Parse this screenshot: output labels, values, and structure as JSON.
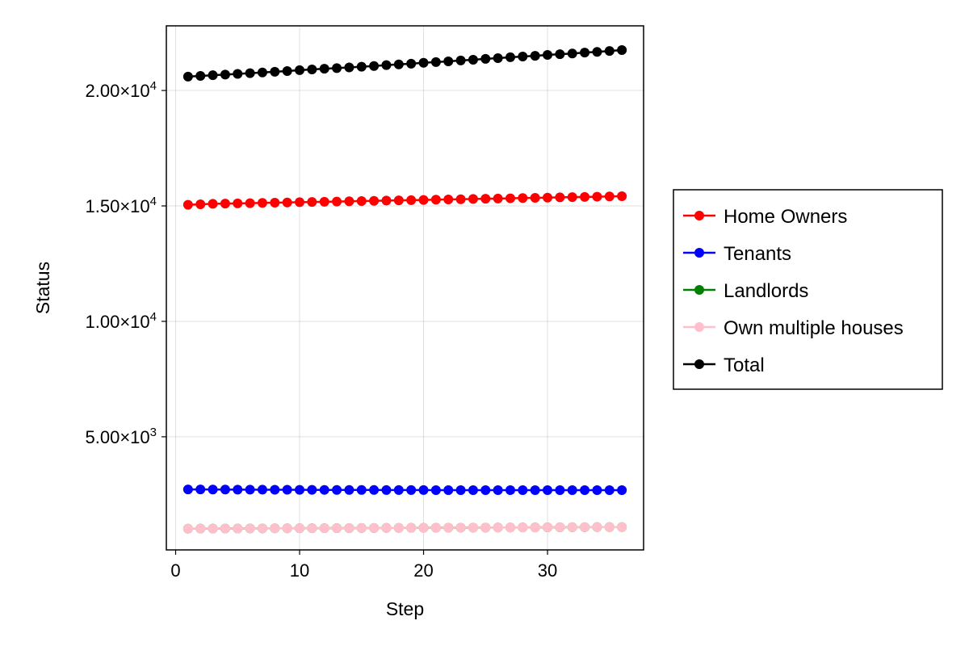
{
  "chart_data": {
    "type": "line",
    "xlabel": "Step",
    "ylabel": "Status",
    "xlim": [
      -0.75,
      37.75
    ],
    "ylim": [
      100,
      22800
    ],
    "x_ticks": [
      0,
      10,
      20,
      30
    ],
    "y_ticks": [
      {
        "value": 5000,
        "mantissa": "5.00×10",
        "exp": "3"
      },
      {
        "value": 10000,
        "mantissa": "1.00×10",
        "exp": "4"
      },
      {
        "value": 15000,
        "mantissa": "1.50×10",
        "exp": "4"
      },
      {
        "value": 20000,
        "mantissa": "2.00×10",
        "exp": "4"
      }
    ],
    "grid": true,
    "legend_position": "right",
    "x": [
      1,
      2,
      3,
      4,
      5,
      6,
      7,
      8,
      9,
      10,
      11,
      12,
      13,
      14,
      15,
      16,
      17,
      18,
      19,
      20,
      21,
      22,
      23,
      24,
      25,
      26,
      27,
      28,
      29,
      30,
      31,
      32,
      33,
      34,
      35,
      36
    ],
    "series": [
      {
        "name": "Landlords",
        "color": "#008000",
        "values": [
          1020,
          1022,
          1024,
          1026,
          1028,
          1030,
          1032,
          1034,
          1036,
          1038,
          1040,
          1042,
          1044,
          1046,
          1048,
          1050,
          1052,
          1054,
          1056,
          1058,
          1060,
          1062,
          1064,
          1066,
          1068,
          1070,
          1072,
          1074,
          1076,
          1078,
          1080,
          1082,
          1084,
          1086,
          1088,
          1090
        ]
      },
      {
        "name": "Own multiple houses",
        "color": "#ffc0cb",
        "values": [
          1020,
          1022,
          1024,
          1026,
          1028,
          1030,
          1032,
          1034,
          1036,
          1038,
          1040,
          1042,
          1044,
          1046,
          1048,
          1050,
          1052,
          1054,
          1056,
          1058,
          1060,
          1062,
          1064,
          1066,
          1068,
          1070,
          1072,
          1074,
          1076,
          1078,
          1080,
          1082,
          1084,
          1086,
          1088,
          1090
        ]
      },
      {
        "name": "Tenants",
        "color": "#0000ff",
        "values": [
          2720,
          2718,
          2716,
          2714,
          2712,
          2710,
          2708,
          2706,
          2704,
          2702,
          2700,
          2699,
          2698,
          2697,
          2696,
          2695,
          2694,
          2693,
          2692,
          2691,
          2690,
          2690,
          2690,
          2690,
          2690,
          2690,
          2690,
          2690,
          2690,
          2690,
          2690,
          2690,
          2690,
          2690,
          2690,
          2690
        ]
      },
      {
        "name": "Home Owners",
        "color": "#ff0000",
        "values": [
          15050,
          15070,
          15090,
          15100,
          15110,
          15120,
          15130,
          15140,
          15150,
          15160,
          15170,
          15180,
          15190,
          15200,
          15210,
          15220,
          15230,
          15240,
          15250,
          15260,
          15270,
          15280,
          15290,
          15300,
          15310,
          15320,
          15330,
          15340,
          15350,
          15360,
          15370,
          15380,
          15390,
          15400,
          15410,
          15420
        ]
      },
      {
        "name": "Total",
        "color": "#000000",
        "values": [
          20600,
          20630,
          20660,
          20690,
          20720,
          20750,
          20780,
          20810,
          20840,
          20880,
          20910,
          20940,
          20970,
          21000,
          21030,
          21060,
          21100,
          21130,
          21160,
          21200,
          21230,
          21260,
          21300,
          21330,
          21370,
          21400,
          21440,
          21470,
          21500,
          21540,
          21570,
          21600,
          21640,
          21670,
          21710,
          21750
        ]
      }
    ],
    "legend_order": [
      "Home Owners",
      "Tenants",
      "Landlords",
      "Own multiple houses",
      "Total"
    ]
  }
}
